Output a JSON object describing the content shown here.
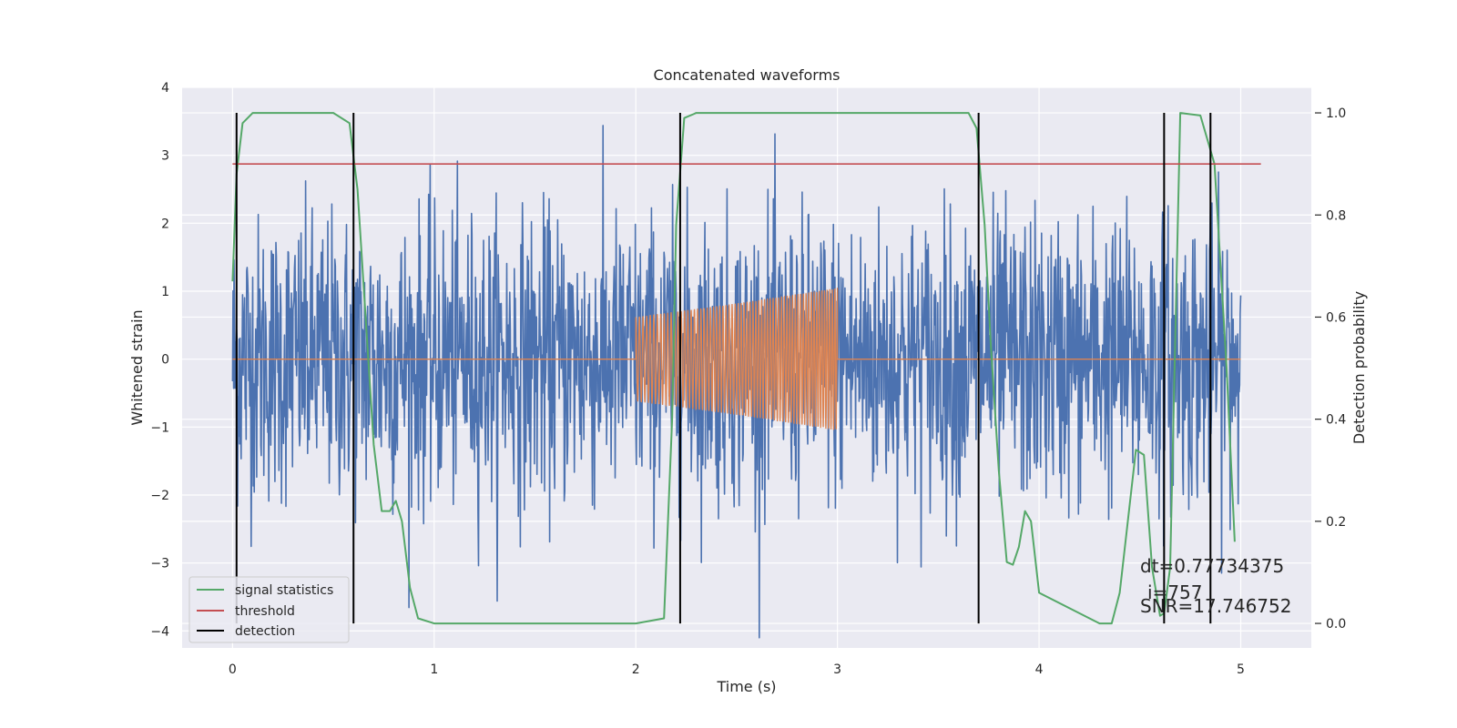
{
  "chart_data": {
    "type": "line",
    "title": "Concatenated waveforms",
    "xlabel": "Time (s)",
    "ylabel": "Whitened strain",
    "y2label": "Detection probability",
    "xlim": [
      -0.25,
      5.35
    ],
    "ylim": [
      -4.25,
      4.0
    ],
    "y2lim": [
      -0.048,
      1.05
    ],
    "xticks": [
      0,
      1,
      2,
      3,
      4,
      5
    ],
    "yticks": [
      -4,
      -3,
      -2,
      -1,
      0,
      1,
      2,
      3,
      4
    ],
    "y2ticks": [
      0.0,
      0.2,
      0.4,
      0.6,
      0.8,
      1.0
    ],
    "xtick_labels": [
      "0",
      "1",
      "2",
      "3",
      "4",
      "5"
    ],
    "ytick_labels": [
      "−4",
      "−3",
      "−2",
      "−1",
      "0",
      "1",
      "2",
      "3",
      "4"
    ],
    "y2tick_labels": [
      "0.0",
      "0.2",
      "0.4",
      "0.6",
      "0.8",
      "1.0"
    ],
    "grid": true,
    "legend_position": "lower-left",
    "legend": [
      "signal statistics",
      "threshold",
      "detection"
    ],
    "colors": {
      "strain": "#4c72b0",
      "waveform": "#dd8452",
      "signal": "#55a868",
      "threshold": "#c44e52",
      "detection": "#000000",
      "background": "#eaeaf2",
      "grid": "#ffffff"
    },
    "series": [
      {
        "name": "",
        "description": "whitened strain noise, x from 0 to 5",
        "x_range": [
          0,
          5
        ],
        "y_range_approx": [
          -4.1,
          3.6
        ]
      },
      {
        "name": "",
        "description": "injected waveform, zero outside 2-3 s, growing amplitude oscillation inside",
        "x": [
          0,
          2,
          2.5,
          3,
          5
        ],
        "amplitude": [
          0,
          0.62,
          0.82,
          1.05,
          0
        ]
      },
      {
        "name": "signal statistics",
        "axis": "right",
        "x": [
          0,
          0.02,
          0.05,
          0.1,
          0.5,
          0.58,
          0.62,
          0.66,
          0.7,
          0.74,
          0.78,
          0.81,
          0.84,
          0.88,
          0.92,
          1.0,
          1.5,
          2.0,
          2.14,
          2.18,
          2.2,
          2.24,
          2.3,
          2.4,
          3.5,
          3.65,
          3.69,
          3.73,
          3.76,
          3.8,
          3.84,
          3.87,
          3.9,
          3.93,
          3.96,
          4.0,
          4.3,
          4.36,
          4.4,
          4.44,
          4.48,
          4.52,
          4.56,
          4.6,
          4.62,
          4.65,
          4.7,
          4.8,
          4.87,
          4.93,
          4.97
        ],
        "y": [
          0.67,
          0.88,
          0.98,
          1.0,
          1.0,
          0.98,
          0.85,
          0.6,
          0.35,
          0.22,
          0.22,
          0.24,
          0.2,
          0.07,
          0.01,
          0.0,
          0.0,
          0.0,
          0.01,
          0.4,
          0.78,
          0.99,
          1.0,
          1.0,
          1.0,
          1.0,
          0.97,
          0.78,
          0.55,
          0.3,
          0.12,
          0.115,
          0.15,
          0.22,
          0.2,
          0.06,
          0.0,
          0.0,
          0.06,
          0.2,
          0.34,
          0.33,
          0.11,
          0.015,
          0.02,
          0.11,
          1.0,
          0.995,
          0.9,
          0.5,
          0.16
        ]
      },
      {
        "name": "threshold",
        "axis": "right",
        "x": [
          0,
          5.1
        ],
        "y": [
          0.9,
          0.9
        ]
      }
    ],
    "detections": [
      0.02,
      0.6,
      2.22,
      3.7,
      4.62,
      4.85
    ],
    "annotations": [
      "dt=0.77734375",
      "i=757",
      "SNR=17.746752"
    ]
  }
}
